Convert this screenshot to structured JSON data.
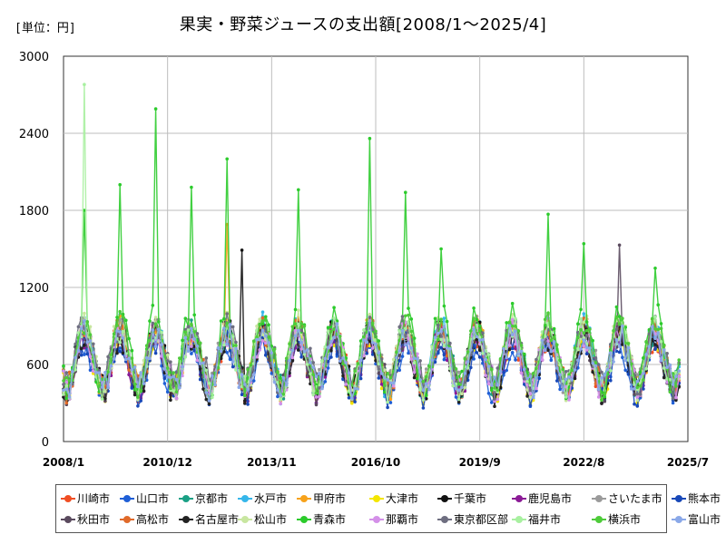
{
  "header": {
    "unit_label": "[単位：円]",
    "title": "果実・野菜ジュースの支出額[2008/1～2025/4]"
  },
  "chart_data": {
    "type": "line",
    "title": "果実・野菜ジュースの支出額[2008/1～2025/4]",
    "unit": "[単位：円]",
    "xlabel": "",
    "ylabel": "",
    "ylim": [
      0,
      3000
    ],
    "yticks": [
      0,
      600,
      1200,
      1800,
      2400,
      3000
    ],
    "x_range": [
      "2008/1",
      "2025/7"
    ],
    "x_tick_labels": [
      "2008/1",
      "2010/12",
      "2013/11",
      "2016/10",
      "2019/9",
      "2022/8",
      "2025/7"
    ],
    "grid": true,
    "legend_position": "bottom",
    "series": [
      {
        "name": "川崎市",
        "color": "#f04e23",
        "base": 620,
        "amp": 210,
        "seed": 11
      },
      {
        "name": "山口市",
        "color": "#1f5fd6",
        "base": 560,
        "amp": 200,
        "seed": 23
      },
      {
        "name": "京都市",
        "color": "#1aa085",
        "base": 640,
        "amp": 230,
        "seed": 37
      },
      {
        "name": "水戸市",
        "color": "#35b6ea",
        "base": 650,
        "amp": 250,
        "seed": 41
      },
      {
        "name": "甲府市",
        "color": "#f7a21b",
        "base": 640,
        "amp": 240,
        "seed": 53
      },
      {
        "name": "大津市",
        "color": "#f4e600",
        "base": 620,
        "amp": 230,
        "seed": 67
      },
      {
        "name": "千葉市",
        "color": "#111111",
        "base": 640,
        "amp": 230,
        "seed": 71
      },
      {
        "name": "鹿児島市",
        "color": "#8b1a96",
        "base": 610,
        "amp": 220,
        "seed": 83
      },
      {
        "name": "さいたま市",
        "color": "#9a9a9a",
        "base": 660,
        "amp": 230,
        "seed": 97
      },
      {
        "name": "熊本市",
        "color": "#1848b8",
        "base": 580,
        "amp": 210,
        "seed": 101
      },
      {
        "name": "秋田市",
        "color": "#5a4a5e",
        "base": 620,
        "amp": 230,
        "seed": 113
      },
      {
        "name": "高松市",
        "color": "#e06a2a",
        "base": 640,
        "amp": 240,
        "seed": 127
      },
      {
        "name": "名古屋市",
        "color": "#222222",
        "base": 600,
        "amp": 220,
        "seed": 131
      },
      {
        "name": "松山市",
        "color": "#c8e6a0",
        "base": 660,
        "amp": 260,
        "seed": 149
      },
      {
        "name": "青森市",
        "color": "#2ccb2c",
        "base": 700,
        "amp": 300,
        "seed": 151
      },
      {
        "name": "那覇市",
        "color": "#d490e8",
        "base": 620,
        "amp": 220,
        "seed": 163
      },
      {
        "name": "東京都区部",
        "color": "#6e6e80",
        "base": 670,
        "amp": 230,
        "seed": 173
      },
      {
        "name": "福井市",
        "color": "#a8f0a0",
        "base": 640,
        "amp": 240,
        "seed": 181
      },
      {
        "name": "横浜市",
        "color": "#4ecb3a",
        "base": 680,
        "amp": 250,
        "seed": 191
      },
      {
        "name": "富山市",
        "color": "#8aa8e8",
        "base": 620,
        "amp": 220,
        "seed": 199
      }
    ],
    "peaks": [
      {
        "series": "福井市",
        "x": "2008/8",
        "y": 2780
      },
      {
        "series": "青森市",
        "x": "2008/8",
        "y": 1800
      },
      {
        "series": "青森市",
        "x": "2009/8",
        "y": 2000
      },
      {
        "series": "青森市",
        "x": "2010/8",
        "y": 2590
      },
      {
        "series": "青森市",
        "x": "2011/8",
        "y": 1980
      },
      {
        "series": "青森市",
        "x": "2012/8",
        "y": 2200
      },
      {
        "series": "甲府市",
        "x": "2012/8",
        "y": 1690
      },
      {
        "series": "千葉市",
        "x": "2013/1",
        "y": 1490
      },
      {
        "series": "青森市",
        "x": "2014/8",
        "y": 1960
      },
      {
        "series": "青森市",
        "x": "2016/8",
        "y": 2360
      },
      {
        "series": "青森市",
        "x": "2017/8",
        "y": 1940
      },
      {
        "series": "青森市",
        "x": "2018/8",
        "y": 1500
      },
      {
        "series": "青森市",
        "x": "2021/8",
        "y": 1770
      },
      {
        "series": "青森市",
        "x": "2022/8",
        "y": 1540
      },
      {
        "series": "秋田市",
        "x": "2023/8",
        "y": 1530
      },
      {
        "series": "青森市",
        "x": "2024/8",
        "y": 1350
      }
    ]
  }
}
